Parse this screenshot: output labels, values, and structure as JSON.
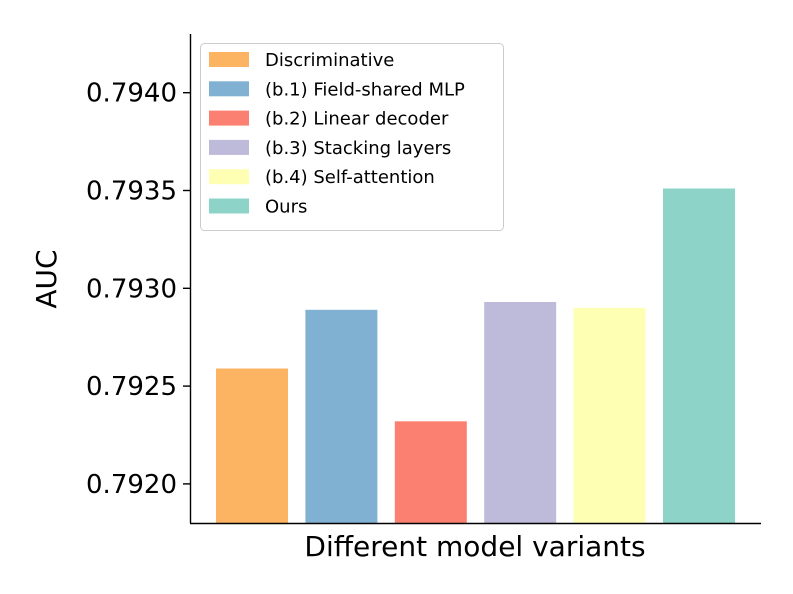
{
  "chart_data": {
    "type": "bar",
    "title": "",
    "xlabel": "Different model variants",
    "ylabel": "AUC",
    "ylim": [
      0.7918,
      0.7943
    ],
    "yticks": [
      "0.7920",
      "0.7925",
      "0.7930",
      "0.7935",
      "0.7940"
    ],
    "categories": [
      "Discriminative",
      "(b.1) Field-shared MLP",
      "(b.2) Linear decoder",
      "(b.3) Stacking layers",
      "(b.4) Self-attention",
      "Ours"
    ],
    "values": [
      0.79259,
      0.79289,
      0.79232,
      0.79293,
      0.7929,
      0.79351
    ],
    "colors": [
      "#fdb462",
      "#80b1d3",
      "#fb8072",
      "#bebada",
      "#ffffb3",
      "#8dd3c7"
    ],
    "legend_position": "top-left",
    "grid": false
  }
}
